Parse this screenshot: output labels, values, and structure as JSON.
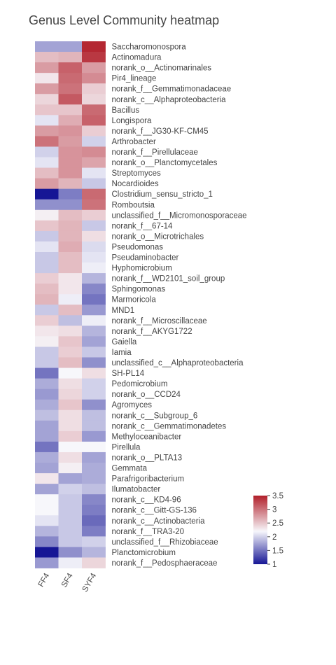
{
  "chart_data": {
    "type": "heatmap",
    "title": "Genus Level Community heatmap",
    "columns": [
      "FF4",
      "SF4",
      "SYF4"
    ],
    "rows": [
      "Saccharomonospora",
      "Actinomadura",
      "norank_o__Actinomarinales",
      "Pir4_lineage",
      "norank_f__Gemmatimonadaceae",
      "norank_c__Alphaproteobacteria",
      "Bacillus",
      "Longispora",
      "norank_f__JG30-KF-CM45",
      "Arthrobacter",
      "norank_f__Pirellulaceae",
      "norank_o__Planctomycetales",
      "Streptomyces",
      "Nocardioides",
      "Clostridium_sensu_stricto_1",
      "Romboutsia",
      "unclassified_f__Micromonosporaceae",
      "norank_f__67-14",
      "norank_o__Microtrichales",
      "Pseudomonas",
      "Pseudaminobacter",
      "Hyphomicrobium",
      "norank_f__WD2101_soil_group",
      "Sphingomonas",
      "Marmoricola",
      "MND1",
      "norank_f__Microscillaceae",
      "norank_f__AKYG1722",
      "Gaiella",
      "Iamia",
      "unclassified_c__Alphaproteobacteria",
      "SH-PL14",
      "Pedomicrobium",
      "norank_o__CCD24",
      "Agromyces",
      "norank_c__Subgroup_6",
      "norank_c__Gemmatimonadetes",
      "Methyloceanibacter",
      "Pirellula",
      "norank_o__PLTA13",
      "Gemmata",
      "Parafrigoribacterium",
      "Ilumatobacter",
      "norank_c__KD4-96",
      "norank_c__Gitt-GS-136",
      "norank_c__Actinobacteria",
      "norank_f__TRA3-20",
      "unclassified_f__Rhizobiaceae",
      "Planctomicrobium",
      "norank_f__Pedosphaeraceae"
    ],
    "values": [
      [
        1.75,
        1.75,
        3.45
      ],
      [
        2.55,
        2.6,
        3.35
      ],
      [
        2.75,
        3.1,
        2.75
      ],
      [
        2.3,
        3.05,
        2.85
      ],
      [
        2.75,
        3.0,
        2.45
      ],
      [
        2.4,
        3.15,
        2.4
      ],
      [
        2.5,
        2.5,
        3.05
      ],
      [
        2.1,
        2.65,
        3.1
      ],
      [
        2.75,
        2.8,
        2.45
      ],
      [
        3.0,
        2.75,
        2.0
      ],
      [
        2.0,
        2.8,
        2.85
      ],
      [
        2.1,
        2.8,
        2.7
      ],
      [
        2.55,
        2.8,
        2.1
      ],
      [
        2.75,
        2.6,
        1.95
      ],
      [
        1.0,
        1.55,
        3.05
      ],
      [
        1.65,
        1.65,
        3.0
      ],
      [
        2.25,
        2.55,
        2.45
      ],
      [
        2.5,
        2.6,
        1.95
      ],
      [
        1.95,
        2.6,
        2.35
      ],
      [
        2.1,
        2.65,
        2.05
      ],
      [
        1.95,
        2.55,
        2.1
      ],
      [
        1.95,
        2.55,
        2.15
      ],
      [
        2.45,
        2.3,
        1.85
      ],
      [
        2.55,
        2.3,
        1.6
      ],
      [
        2.6,
        2.15,
        1.5
      ],
      [
        1.95,
        2.55,
        1.7
      ],
      [
        2.45,
        1.9,
        2.15
      ],
      [
        2.3,
        2.35,
        1.85
      ],
      [
        2.25,
        2.5,
        1.75
      ],
      [
        1.95,
        2.45,
        1.95
      ],
      [
        1.95,
        2.55,
        1.65
      ],
      [
        1.5,
        2.2,
        2.35
      ],
      [
        1.8,
        2.35,
        2.0
      ],
      [
        1.7,
        2.4,
        2.0
      ],
      [
        1.8,
        2.5,
        1.65
      ],
      [
        1.9,
        2.35,
        1.9
      ],
      [
        1.75,
        2.35,
        1.9
      ],
      [
        1.75,
        2.45,
        1.7
      ],
      [
        1.5,
        2.2,
        2.2
      ],
      [
        1.8,
        2.35,
        1.75
      ],
      [
        1.75,
        2.25,
        1.8
      ],
      [
        2.3,
        1.75,
        1.8
      ],
      [
        1.75,
        2.0,
        1.9
      ],
      [
        2.2,
        1.95,
        1.6
      ],
      [
        2.2,
        1.95,
        1.55
      ],
      [
        2.1,
        1.95,
        1.45
      ],
      [
        1.85,
        1.95,
        1.55
      ],
      [
        1.6,
        1.95,
        2.0
      ],
      [
        1.0,
        1.65,
        1.85
      ],
      [
        1.7,
        2.15,
        2.4
      ]
    ],
    "colorscale": {
      "min": 1.0,
      "max": 3.5,
      "stops": [
        {
          "v": 1.0,
          "color": "#161695"
        },
        {
          "v": 2.2,
          "color": "#f7f7fb"
        },
        {
          "v": 3.5,
          "color": "#b11f2a"
        }
      ],
      "ticks": [
        "1",
        "1.5",
        "2",
        "2.5",
        "3",
        "3.5"
      ],
      "tick_values": [
        1,
        1.5,
        2,
        2.5,
        3,
        3.5
      ]
    },
    "legend": "right"
  }
}
